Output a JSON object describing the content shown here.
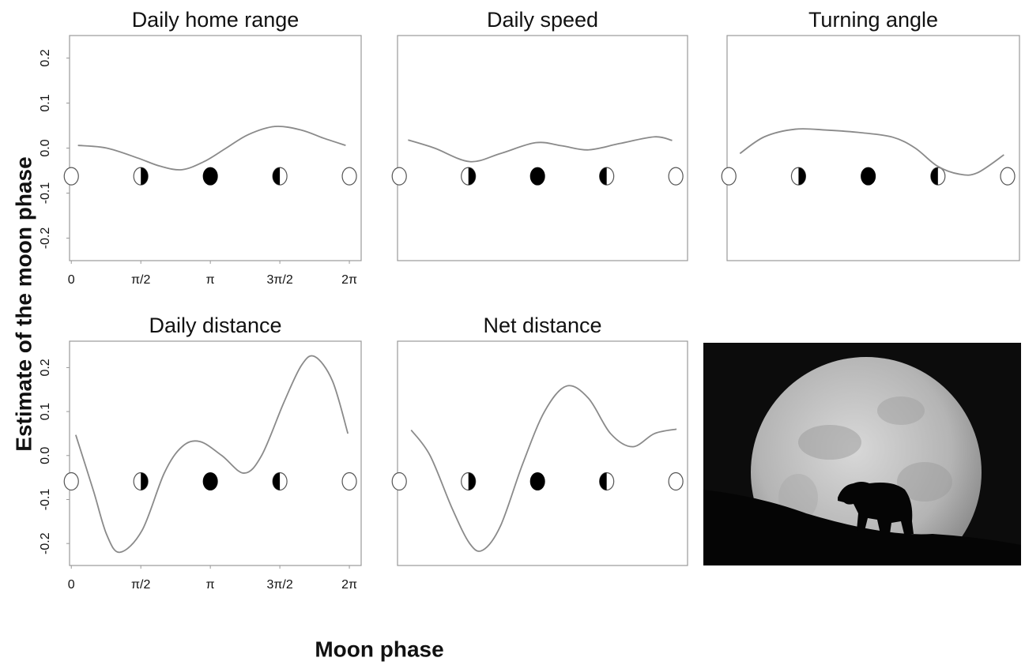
{
  "ylabel": "Estimate of the moon phase",
  "xlabel": "Moon phase",
  "chart_data": [
    {
      "type": "line",
      "title": "Daily home range",
      "color": "#8a8a8a",
      "x": [
        0.15,
        0.8,
        1.5,
        2.0,
        2.5,
        3.0,
        3.5,
        4.0,
        4.6,
        5.2,
        5.7,
        6.2
      ],
      "values": [
        0.006,
        0.0,
        -0.022,
        -0.04,
        -0.048,
        -0.03,
        0.0,
        0.03,
        0.048,
        0.04,
        0.022,
        0.006
      ],
      "xlim": [
        -0.04,
        6.55
      ],
      "ylim": [
        -0.25,
        0.25
      ],
      "xticks": [
        0,
        {
          "value": 1.5708,
          "label": "π/2"
        },
        {
          "value": 3.1416,
          "label": "π"
        },
        {
          "value": 4.7124,
          "label": "3π/2"
        },
        {
          "value": 6.2832,
          "label": "2π"
        }
      ],
      "yticks": [
        -0.2,
        -0.1,
        {
          "value": 0,
          "label": "0.0"
        },
        0.1,
        0.2
      ]
    },
    {
      "type": "line",
      "title": "Daily speed",
      "color": "#8a8a8a",
      "x": [
        0.2,
        0.8,
        1.6,
        2.3,
        3.1,
        3.7,
        4.3,
        5.0,
        5.8,
        6.2
      ],
      "values": [
        0.018,
        0.0,
        -0.03,
        -0.012,
        0.012,
        0.005,
        -0.004,
        0.01,
        0.025,
        0.017
      ],
      "xlim": [
        -0.04,
        6.55
      ],
      "ylim": [
        -0.25,
        0.25
      ]
    },
    {
      "type": "line",
      "title": "Turning angle",
      "color": "#8a8a8a",
      "x": [
        0.25,
        0.8,
        1.5,
        2.2,
        3.0,
        3.7,
        4.2,
        4.7,
        5.2,
        5.6,
        6.2
      ],
      "values": [
        -0.012,
        0.025,
        0.042,
        0.04,
        0.034,
        0.024,
        0.0,
        -0.04,
        -0.058,
        -0.055,
        -0.015
      ],
      "xlim": [
        -0.04,
        6.55
      ],
      "ylim": [
        -0.25,
        0.25
      ]
    },
    {
      "type": "line",
      "title": "Daily distance",
      "color": "#8a8a8a",
      "x": [
        0.1,
        0.5,
        0.8,
        1.1,
        1.6,
        2.1,
        2.5,
        2.9,
        3.4,
        3.9,
        4.3,
        4.8,
        5.2,
        5.5,
        5.9,
        6.25
      ],
      "values": [
        0.047,
        -0.08,
        -0.18,
        -0.22,
        -0.17,
        -0.04,
        0.02,
        0.032,
        0.0,
        -0.04,
        0.0,
        0.12,
        0.205,
        0.225,
        0.17,
        0.05
      ],
      "xlim": [
        -0.04,
        6.55
      ],
      "ylim": [
        -0.25,
        0.26
      ],
      "xticks": [
        0,
        {
          "value": 1.5708,
          "label": "π/2"
        },
        {
          "value": 3.1416,
          "label": "π"
        },
        {
          "value": 4.7124,
          "label": "3π/2"
        },
        {
          "value": 6.2832,
          "label": "2π"
        }
      ],
      "yticks": [
        -0.2,
        -0.1,
        {
          "value": 0,
          "label": "0.0"
        },
        0.1,
        0.2
      ]
    },
    {
      "type": "line",
      "title": "Net distance",
      "color": "#8a8a8a",
      "x": [
        0.27,
        0.7,
        1.2,
        1.6,
        1.9,
        2.3,
        2.8,
        3.3,
        3.8,
        4.3,
        4.8,
        5.3,
        5.8,
        6.3
      ],
      "values": [
        0.058,
        0.0,
        -0.12,
        -0.2,
        -0.215,
        -0.16,
        -0.02,
        0.1,
        0.158,
        0.13,
        0.05,
        0.02,
        0.05,
        0.06
      ],
      "xlim": [
        -0.04,
        6.55
      ],
      "ylim": [
        -0.25,
        0.26
      ]
    }
  ]
}
